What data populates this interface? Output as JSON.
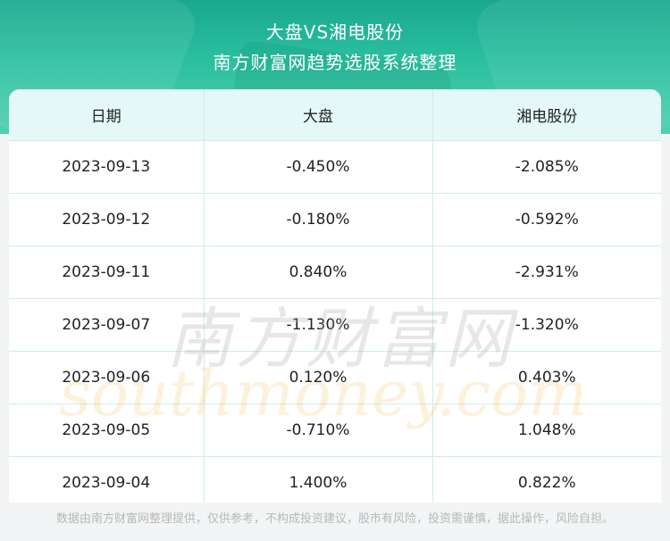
{
  "header": {
    "title": "大盘VS湘电股份",
    "subtitle": "南方财富网趋势选股系统整理"
  },
  "table": {
    "columns": [
      "日期",
      "大盘",
      "湘电股份"
    ],
    "rows": [
      [
        "2023-09-13",
        "-0.450%",
        "-2.085%"
      ],
      [
        "2023-09-12",
        "-0.180%",
        "-0.592%"
      ],
      [
        "2023-09-11",
        "0.840%",
        "-2.931%"
      ],
      [
        "2023-09-07",
        "-1.130%",
        "-1.320%"
      ],
      [
        "2023-09-06",
        "0.120%",
        "0.403%"
      ],
      [
        "2023-09-05",
        "-0.710%",
        "1.048%"
      ],
      [
        "2023-09-04",
        "1.400%",
        "0.822%"
      ]
    ]
  },
  "watermark": {
    "cn": "南方财富网",
    "en": "southmoney.com"
  },
  "footer": {
    "disclaimer": "数据由南方财富网整理提供，仅供参考，不构成投资建议，股市有风险，投资需谨慎，据此操作，风险自担。"
  },
  "colors": {
    "header_bg": "#2bbf9f",
    "table_header_bg": "#e3f8f7",
    "grid_line": "#cfeee6"
  }
}
